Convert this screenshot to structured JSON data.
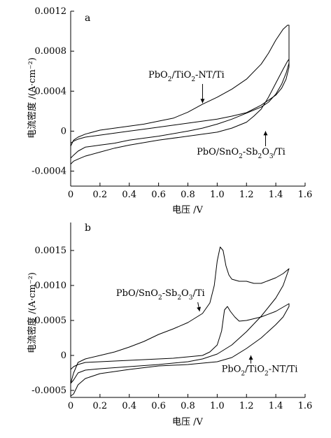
{
  "chart_data": [
    {
      "type": "line",
      "panel_label": "a",
      "xlabel": "电压 /V",
      "ylabel": "电流密度 /(A·cm⁻²)",
      "xlim": [
        0,
        1.6
      ],
      "ylim": [
        -0.00055,
        0.0012
      ],
      "x_ticks": [
        0,
        0.2,
        0.4,
        0.6,
        0.8,
        1.0,
        1.2,
        1.4,
        1.6
      ],
      "x_tick_labels": [
        "0",
        "0.2",
        "0.4",
        "0.6",
        "0.8",
        "1.0",
        "1.2",
        "1.4",
        "1.6"
      ],
      "y_ticks": [
        -0.0004,
        0,
        0.0004,
        0.0008,
        0.0012
      ],
      "y_tick_labels": [
        "-0.0004",
        "0",
        "0.0004",
        "0.0008",
        "0.0012"
      ],
      "annotations": [
        {
          "base": "PbO",
          "sub1": "2",
          "mid": "/TiO",
          "sub2": "2",
          "tail": "-NT/Ti",
          "x": 0.53,
          "y": 0.000535,
          "target": [
            0.9,
            0.00028
          ]
        },
        {
          "base": "PbO/SnO",
          "sub1": "2",
          "mid": "-Sb",
          "sub2": "2",
          "mid2": "O",
          "sub3": "3",
          "tail": "/Ti",
          "x": 0.86,
          "y": -0.000235,
          "target": [
            1.33,
            0.0
          ]
        }
      ],
      "series": [
        {
          "x": [
            0,
            0.02,
            0.05,
            0.1,
            0.2,
            0.3,
            0.4,
            0.5,
            0.6,
            0.7,
            0.8,
            0.9,
            1.0,
            1.1,
            1.2,
            1.3,
            1.35,
            1.4,
            1.45,
            1.48,
            1.49,
            1.49,
            1.47,
            1.44,
            1.4,
            1.3,
            1.2,
            1.1,
            1.0,
            0.9,
            0.8,
            0.7,
            0.6,
            0.5,
            0.4,
            0.3,
            0.2,
            0.1,
            0.05,
            0.02,
            0
          ],
          "y": [
            -0.00015,
            -9e-05,
            -6e-05,
            -3e-05,
            1e-05,
            3e-05,
            5e-05,
            7e-05,
            0.0001,
            0.00013,
            0.00019,
            0.00027,
            0.00034,
            0.00042,
            0.00052,
            0.00067,
            0.00078,
            0.00091,
            0.00102,
            0.00106,
            0.00106,
            0.00064,
            0.00052,
            0.00043,
            0.00036,
            0.00026,
            0.000185,
            0.00015,
            0.00012,
            0.0001,
            8e-05,
            6e-05,
            4e-05,
            2e-05,
            0.0,
            -2e-05,
            -4e-05,
            -6e-05,
            -8e-05,
            -0.0001,
            -0.00012
          ]
        },
        {
          "x": [
            0,
            0.02,
            0.05,
            0.1,
            0.2,
            0.3,
            0.4,
            0.6,
            0.8,
            1.0,
            1.1,
            1.2,
            1.25,
            1.3,
            1.35,
            1.4,
            1.45,
            1.48,
            1.49,
            1.49,
            1.47,
            1.44,
            1.4,
            1.35,
            1.3,
            1.2,
            1.1,
            1.0,
            0.9,
            0.8,
            0.6,
            0.4,
            0.3,
            0.2,
            0.1,
            0.05,
            0.02,
            0
          ],
          "y": [
            -0.00033,
            -0.0003,
            -0.00028,
            -0.00025,
            -0.00021,
            -0.00017,
            -0.00014,
            -9e-05,
            -5e-05,
            -1e-05,
            3e-05,
            9e-05,
            0.00015,
            0.00022,
            0.00034,
            0.00048,
            0.00062,
            0.0007,
            0.00072,
            0.00068,
            0.00058,
            0.00047,
            0.00037,
            0.00029,
            0.00024,
            0.00018,
            0.00012,
            7e-05,
            3e-05,
            0.0,
            -5e-05,
            -9e-05,
            -0.00012,
            -0.00014,
            -0.00016,
            -0.0002,
            -0.00024,
            -0.00027
          ]
        }
      ]
    },
    {
      "type": "line",
      "panel_label": "b",
      "xlabel": "电压 /V",
      "ylabel": "电流密度 /(A·cm⁻²)",
      "xlim": [
        0,
        1.6
      ],
      "ylim": [
        -0.0006,
        0.0019
      ],
      "x_ticks": [
        0,
        0.2,
        0.4,
        0.6,
        0.8,
        1.0,
        1.2,
        1.4,
        1.6
      ],
      "x_tick_labels": [
        "0",
        "0.2",
        "0.4",
        "0.6",
        "0.8",
        "1.0",
        "1.2",
        "1.4",
        "1.6"
      ],
      "y_ticks": [
        -0.0005,
        0,
        0.0005,
        0.001,
        0.0015
      ],
      "y_tick_labels": [
        "-0.0005",
        "0",
        "0.0005",
        "0.0010",
        "0.0015"
      ],
      "annotations": [
        {
          "base": "PbO/SnO",
          "sub1": "2",
          "mid": "-Sb",
          "sub2": "2",
          "mid2": "O",
          "sub3": "3",
          "tail": "/Ti",
          "x": 0.31,
          "y": 0.00085,
          "target": [
            0.88,
            0.00063
          ]
        },
        {
          "base": "PbO",
          "sub1": "2",
          "mid": "/TiO",
          "sub2": "2",
          "tail": "-NT/Ti",
          "x": 1.03,
          "y": -0.000235,
          "target": [
            1.23,
            0.0
          ]
        }
      ],
      "series": [
        {
          "x": [
            0,
            0.02,
            0.05,
            0.1,
            0.2,
            0.3,
            0.4,
            0.5,
            0.6,
            0.7,
            0.8,
            0.9,
            0.95,
            0.98,
            1.0,
            1.02,
            1.04,
            1.06,
            1.08,
            1.1,
            1.15,
            1.2,
            1.25,
            1.3,
            1.35,
            1.4,
            1.45,
            1.49,
            1.49,
            1.45,
            1.4,
            1.3,
            1.2,
            1.1,
            1.0,
            0.9,
            0.8,
            0.6,
            0.4,
            0.2,
            0.1,
            0.05,
            0.02,
            0
          ],
          "y": [
            -0.0004,
            -0.00025,
            -0.0001,
            -5e-05,
            0.0,
            5e-05,
            0.00012,
            0.0002,
            0.0003,
            0.00038,
            0.00047,
            0.0006,
            0.00075,
            0.001,
            0.00135,
            0.00155,
            0.0015,
            0.00128,
            0.00115,
            0.00109,
            0.00106,
            0.00106,
            0.00103,
            0.00103,
            0.00107,
            0.00111,
            0.00117,
            0.00124,
            0.00124,
            0.001,
            0.00082,
            0.00056,
            0.00034,
            0.00015,
            2e-05,
            -5e-05,
            -9e-05,
            -0.00013,
            -0.00016,
            -0.00019,
            -0.00021,
            -0.00025,
            -0.00035,
            -0.0004
          ]
        },
        {
          "x": [
            0,
            0.02,
            0.05,
            0.1,
            0.2,
            0.3,
            0.4,
            0.5,
            0.6,
            0.7,
            0.8,
            0.9,
            0.95,
            1.0,
            1.03,
            1.05,
            1.07,
            1.09,
            1.12,
            1.15,
            1.2,
            1.3,
            1.4,
            1.49,
            1.49,
            1.45,
            1.4,
            1.3,
            1.2,
            1.1,
            1.0,
            0.9,
            0.8,
            0.6,
            0.4,
            0.2,
            0.1,
            0.05,
            0.02,
            0
          ],
          "y": [
            -0.0002,
            -0.00016,
            -0.00013,
            -0.0001,
            -9e-05,
            -8e-05,
            -7e-05,
            -6e-05,
            -5e-05,
            -4e-05,
            -2e-05,
            0.0,
            5e-05,
            0.00015,
            0.00035,
            0.00065,
            0.0007,
            0.00063,
            0.00055,
            0.00049,
            0.0005,
            0.00055,
            0.00063,
            0.00074,
            0.0007,
            0.00055,
            0.00044,
            0.00025,
            0.0001,
            -3e-05,
            -9e-05,
            -0.00011,
            -0.00013,
            -0.00015,
            -0.0002,
            -0.00026,
            -0.00033,
            -0.00042,
            -0.00055,
            -0.00058
          ]
        }
      ]
    }
  ]
}
